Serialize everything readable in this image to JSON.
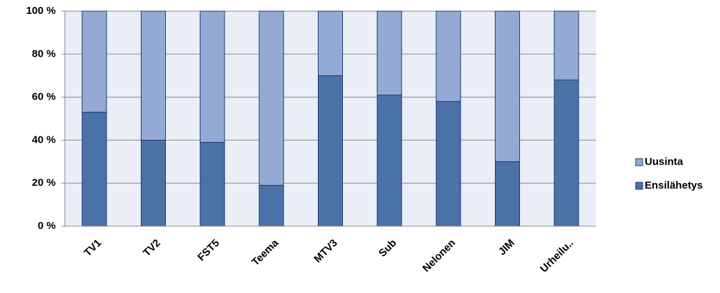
{
  "chart_data": {
    "type": "stacked_bar_100",
    "categories": [
      "TV1",
      "TV2",
      "FST5",
      "Teema",
      "MTV3",
      "Sub",
      "Nelonen",
      "JIM",
      "Urheilu.."
    ],
    "series": [
      {
        "name": "Ensilähetys",
        "color": "#4a72a6",
        "values": [
          53,
          40,
          39,
          19,
          70,
          61,
          58,
          30,
          68
        ]
      },
      {
        "name": "Uusinta",
        "color": "#95a9d5",
        "values": [
          47,
          60,
          61,
          81,
          30,
          39,
          42,
          70,
          32
        ]
      }
    ],
    "ylim": [
      0,
      100
    ],
    "yticks": [
      {
        "value": 0,
        "label": "0 %"
      },
      {
        "value": 20,
        "label": "20 %"
      },
      {
        "value": 40,
        "label": "40 %"
      },
      {
        "value": 60,
        "label": "60 %"
      },
      {
        "value": 80,
        "label": "80 %"
      },
      {
        "value": 100,
        "label": "100 %"
      }
    ],
    "grid": true,
    "legend": "right"
  }
}
